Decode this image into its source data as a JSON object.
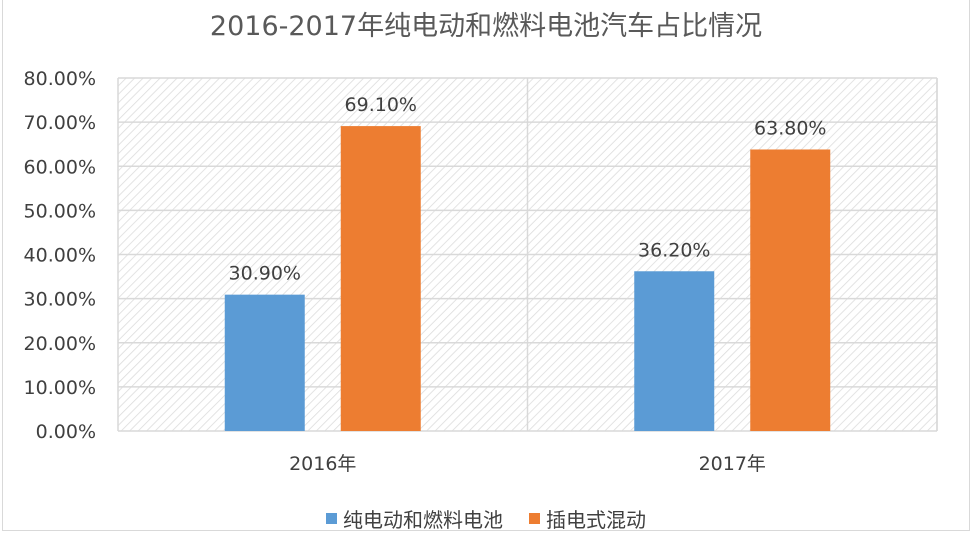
{
  "chart_data": {
    "type": "bar",
    "title": "2016-2017年纯电动和燃料电池汽车占比情况",
    "categories": [
      "2016年",
      "2017年"
    ],
    "series": [
      {
        "name": "纯电动和燃料电池",
        "values": [
          30.9,
          36.2
        ],
        "labels": [
          "30.90%",
          "36.20%"
        ],
        "color": "#5b9bd5"
      },
      {
        "name": "插电式混动",
        "values": [
          69.1,
          63.8
        ],
        "labels": [
          "69.10%",
          "63.80%"
        ],
        "color": "#ed7d31"
      }
    ],
    "ylim": [
      0,
      80
    ],
    "yticks": [
      "0.00%",
      "10.00%",
      "20.00%",
      "30.00%",
      "40.00%",
      "50.00%",
      "60.00%",
      "70.00%",
      "80.00%"
    ],
    "grid": true,
    "legend": "bottom",
    "xlabel": "",
    "ylabel": ""
  }
}
